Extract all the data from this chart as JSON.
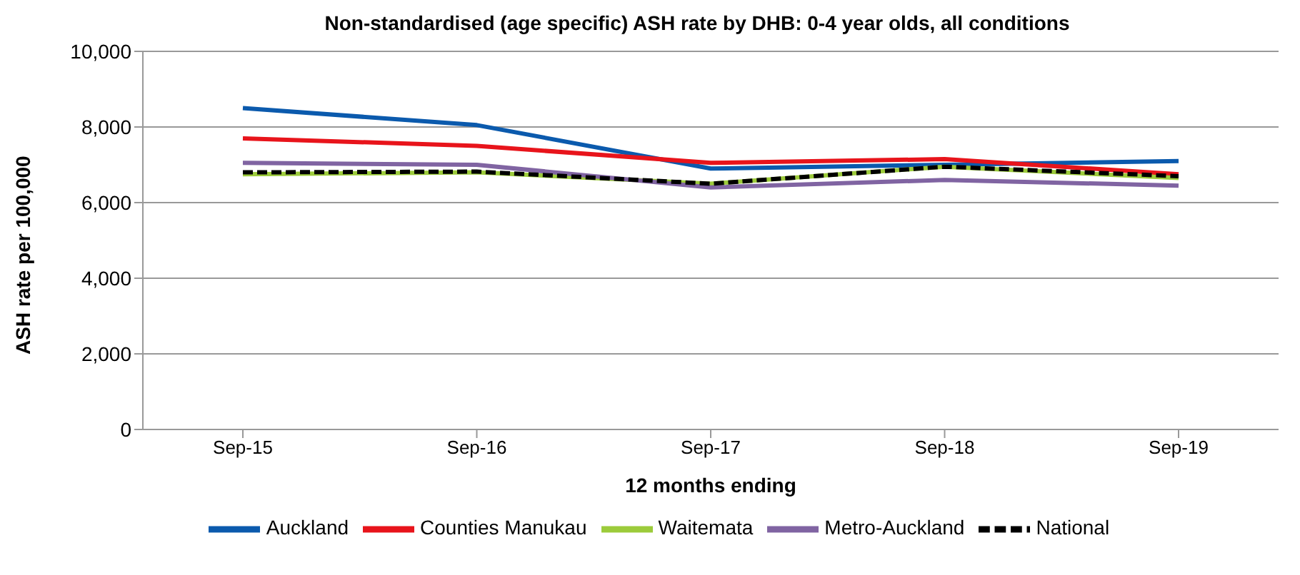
{
  "chart_data": {
    "type": "line",
    "title": "Non-standardised  (age specific) ASH rate by DHB: 0-4 year olds, all conditions",
    "xlabel": "12 months ending",
    "ylabel": "ASH rate per 100,000",
    "categories": [
      "Sep-15",
      "Sep-16",
      "Sep-17",
      "Sep-18",
      "Sep-19"
    ],
    "ylim": [
      0,
      10000
    ],
    "yticks": [
      {
        "value": 0,
        "label": "0"
      },
      {
        "value": 2000,
        "label": "2,000"
      },
      {
        "value": 4000,
        "label": "4,000"
      },
      {
        "value": 6000,
        "label": "6,000"
      },
      {
        "value": 8000,
        "label": "8,000"
      },
      {
        "value": 10000,
        "label": "10,000"
      }
    ],
    "grid": "y",
    "legend": "bottom",
    "marker": "none",
    "series": [
      {
        "name": "Auckland",
        "color": "#0b5aad",
        "values": [
          8500,
          8050,
          6900,
          7000,
          7100
        ]
      },
      {
        "name": "Counties Manukau",
        "color": "#e8141b",
        "values": [
          7700,
          7500,
          7050,
          7150,
          6750
        ]
      },
      {
        "name": "Waitemata",
        "color": "#9ccb3b",
        "values": [
          6750,
          6800,
          6500,
          6950,
          6650
        ]
      },
      {
        "name": "Metro-Auckland",
        "color": "#8064a2",
        "values": [
          7050,
          7000,
          6400,
          6600,
          6450
        ]
      },
      {
        "name": "National",
        "color": "#000000",
        "line_style": "dashed",
        "values": [
          6800,
          6820,
          6500,
          6950,
          6700
        ]
      }
    ]
  }
}
